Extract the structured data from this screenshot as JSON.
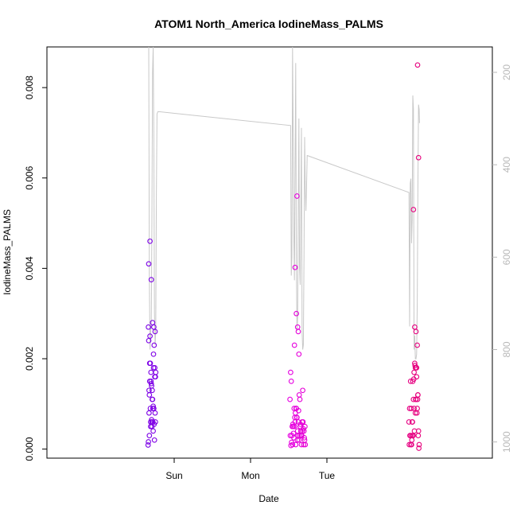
{
  "chart_data": {
    "type": "scatter",
    "title": "ATOM1 North_America IodineMass_PALMS",
    "xlabel": "Date",
    "ylabel": "IodineMass_PALMS",
    "x_unit": "hours relative to Sun 00:00",
    "xlim": [
      -40,
      100
    ],
    "ylim": [
      -0.0002,
      0.0089
    ],
    "x_ticks": [
      {
        "value": 0,
        "label": "Sun"
      },
      {
        "value": 24,
        "label": "Mon"
      },
      {
        "value": 48,
        "label": "Tue"
      }
    ],
    "y_ticks": [
      {
        "value": 0.0,
        "label": "0.000"
      },
      {
        "value": 0.002,
        "label": "0.002"
      },
      {
        "value": 0.004,
        "label": "0.004"
      },
      {
        "value": 0.006,
        "label": "0.006"
      },
      {
        "value": 0.008,
        "label": "0.008"
      }
    ],
    "right_axis": {
      "ylim": [
        1035,
        145
      ],
      "inverted": true,
      "ticks": [
        {
          "value": 200,
          "label": "200"
        },
        {
          "value": 400,
          "label": "400"
        },
        {
          "value": 600,
          "label": "600"
        },
        {
          "value": 800,
          "label": "800"
        },
        {
          "value": 1000,
          "label": "1000"
        }
      ]
    },
    "grid": false,
    "line_color": "#c8c8c8",
    "right_axis_color": "#b8b8b8",
    "color_start": "#7a00e6",
    "color_mid": "#e600e6",
    "color_end": "#e6007a",
    "pressure_line": [
      [
        -8.0,
        120
      ],
      [
        -7.9,
        400
      ],
      [
        -7.8,
        650
      ],
      [
        -7.6,
        800
      ],
      [
        -7.4,
        760
      ],
      [
        -7.2,
        740
      ],
      [
        -7.0,
        520
      ],
      [
        -6.8,
        200
      ],
      [
        -6.6,
        100
      ],
      [
        -6.4,
        340
      ],
      [
        -6.2,
        720
      ],
      [
        -6.0,
        790
      ],
      [
        -5.8,
        760
      ],
      [
        -5.6,
        470
      ],
      [
        -5.4,
        290
      ],
      [
        -5.1,
        285
      ],
      [
        36.6,
        315
      ],
      [
        36.8,
        640
      ],
      [
        37.0,
        600
      ],
      [
        37.2,
        110
      ],
      [
        37.4,
        330
      ],
      [
        37.6,
        550
      ],
      [
        37.8,
        650
      ],
      [
        38.0,
        400
      ],
      [
        38.2,
        180
      ],
      [
        38.4,
        620
      ],
      [
        38.6,
        760
      ],
      [
        38.8,
        730
      ],
      [
        39.0,
        500
      ],
      [
        39.2,
        300
      ],
      [
        39.4,
        620
      ],
      [
        39.6,
        660
      ],
      [
        39.8,
        500
      ],
      [
        40.0,
        320
      ],
      [
        40.2,
        760
      ],
      [
        40.4,
        800
      ],
      [
        40.6,
        790
      ],
      [
        40.8,
        600
      ],
      [
        41.0,
        340
      ],
      [
        41.2,
        450
      ],
      [
        41.4,
        500
      ],
      [
        41.6,
        450
      ],
      [
        41.8,
        380
      ],
      [
        73.8,
        460
      ],
      [
        74.0,
        750
      ],
      [
        74.2,
        440
      ],
      [
        74.4,
        430
      ],
      [
        74.6,
        570
      ],
      [
        74.8,
        520
      ],
      [
        75.0,
        250
      ],
      [
        75.2,
        280
      ],
      [
        75.4,
        800
      ],
      [
        75.6,
        770
      ],
      [
        75.8,
        820
      ],
      [
        76.0,
        820
      ],
      [
        76.2,
        810
      ],
      [
        76.4,
        700
      ],
      [
        76.6,
        450
      ],
      [
        76.8,
        270
      ],
      [
        77.0,
        280
      ],
      [
        77.1,
        310
      ]
    ],
    "series": [
      {
        "name": "",
        "x": [
          -8.2,
          -8.1,
          -7.9,
          -7.7,
          -7.5,
          -7.3,
          -7.1,
          -6.9,
          -6.7,
          -6.5,
          -6.3,
          -6.1,
          -5.9,
          -5.8,
          -8.0,
          -7.6,
          -7.2,
          -6.8,
          -6.4,
          -6.0,
          -8.1,
          -7.8,
          -7.4,
          -7.0,
          -6.6,
          -6.2,
          -5.9,
          -7.9,
          -7.5,
          -7.1,
          -6.7,
          -6.3,
          -7.7,
          -7.3,
          -6.9,
          -6.5,
          -6.1,
          -8.0,
          -7.6,
          -7.2,
          -6.8,
          -6.4,
          -6.0,
          -7.8,
          -7.4,
          -7.0,
          -6.6
        ],
        "y": [
          9e-05,
          0.00016,
          0.0013,
          0.0015,
          0.0019,
          0.0017,
          0.0014,
          0.0011,
          0.0009,
          0.0021,
          0.0023,
          0.0018,
          0.0016,
          0.0017,
          0.0041,
          0.0046,
          0.00375,
          0.0028,
          0.0027,
          0.0026,
          0.0027,
          0.0012,
          0.0006,
          0.0005,
          0.0004,
          0.0002,
          0.0006,
          0.0008,
          0.0009,
          0.00065,
          0.0006,
          0.00055,
          0.0019,
          0.0015,
          0.0013,
          0.0018,
          0.0016,
          0.0024,
          0.0025,
          0.00145,
          0.0011,
          0.0009,
          0.0008,
          0.0003,
          0.0005,
          0.0006,
          0.00095
        ]
      },
      {
        "name": "",
        "x": [
          36.4,
          36.6,
          36.8,
          37.0,
          37.2,
          37.4,
          37.6,
          37.8,
          38.0,
          38.2,
          38.4,
          38.6,
          38.8,
          39.0,
          39.2,
          39.4,
          39.6,
          39.8,
          40.0,
          40.2,
          40.4,
          40.6,
          40.8,
          41.0,
          41.2,
          36.5,
          36.9,
          37.3,
          37.7,
          38.1,
          38.5,
          38.9,
          39.3,
          39.7,
          40.1,
          40.5,
          40.9,
          36.7,
          37.1,
          37.5,
          37.9,
          38.3,
          38.7,
          39.1,
          39.5,
          39.9,
          40.3,
          40.7,
          41.1,
          37.8,
          38.0,
          38.6,
          39.0,
          39.2,
          38.8,
          38.4
        ],
        "y": [
          0.0011,
          0.0017,
          0.0015,
          0.0003,
          0.0001,
          0.0005,
          0.00025,
          0.0005,
          0.0006,
          0.0001,
          0.0009,
          0.0007,
          0.0004,
          0.0006,
          0.0002,
          0.0003,
          0.0005,
          0.0004,
          0.0001,
          0.0006,
          0.0013,
          0.00045,
          0.0004,
          0.0002,
          0.0001,
          0.0003,
          0.00015,
          0.00055,
          0.0009,
          0.0008,
          0.0007,
          0.0003,
          0.0012,
          0.00055,
          0.0003,
          0.0006,
          0.00025,
          8e-05,
          0.0005,
          0.00035,
          0.0007,
          0.0009,
          0.0002,
          0.00085,
          0.0011,
          0.0003,
          0.0004,
          0.0001,
          0.0005,
          0.0023,
          0.00402,
          0.0056,
          0.0026,
          0.0021,
          0.0027,
          0.003
        ]
      },
      {
        "name": "",
        "x": [
          73.8,
          74.0,
          74.2,
          74.4,
          74.6,
          74.8,
          75.0,
          75.2,
          75.4,
          75.6,
          75.8,
          76.0,
          76.2,
          76.4,
          76.6,
          76.8,
          77.0,
          73.9,
          74.3,
          74.7,
          75.1,
          75.5,
          75.9,
          76.3,
          76.7,
          74.1,
          74.5,
          74.9,
          75.3,
          75.7,
          76.1,
          76.5,
          76.9,
          74.6,
          75.0,
          75.4,
          75.8,
          76.2,
          76.6,
          75.6,
          76.0,
          76.4,
          76.8,
          76.5,
          75.2
        ],
        "y": [
          0.0006,
          0.0009,
          0.0003,
          0.0001,
          0.0003,
          0.0006,
          0.0015,
          0.0011,
          0.0017,
          0.0019,
          0.0018,
          0.0011,
          0.0016,
          0.0009,
          0.0012,
          0.0004,
          0.0001,
          0.0001,
          0.0015,
          0.0002,
          0.0003,
          0.0004,
          0.0011,
          0.0008,
          0.0003,
          0.0003,
          0.0009,
          0.0006,
          0.00155,
          0.00185,
          0.0018,
          0.0011,
          2e-05,
          0.0001,
          0.0003,
          0.0009,
          0.0008,
          0.0018,
          0.0012,
          0.0027,
          0.0026,
          0.0023,
          0.00645,
          0.0085,
          0.0053
        ]
      }
    ]
  }
}
